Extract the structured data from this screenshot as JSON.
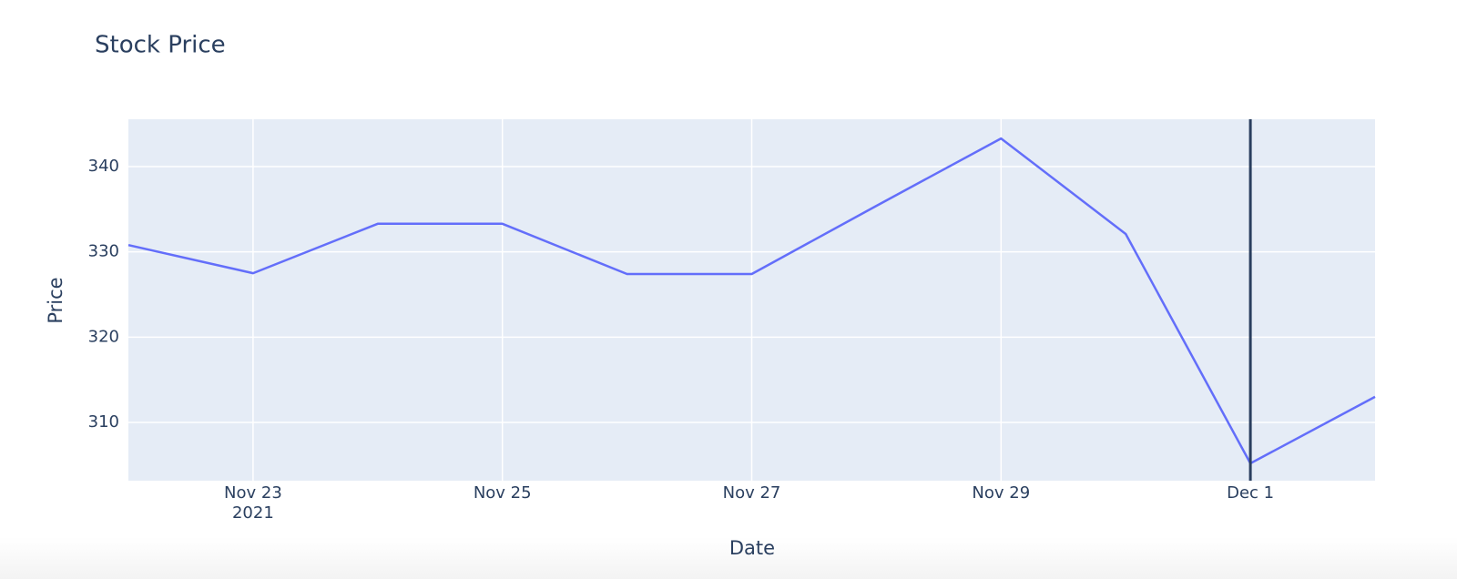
{
  "chart_data": {
    "type": "line",
    "title": "Stock Price",
    "x_label": "Date",
    "y_label": "Price",
    "x": [
      "2021-11-22",
      "2021-11-23",
      "2021-11-24",
      "2021-11-25",
      "2021-11-26",
      "2021-11-27",
      "2021-11-28",
      "2021-11-29",
      "2021-11-30",
      "2021-12-01",
      "2021-12-02"
    ],
    "series": [
      {
        "name": "Price",
        "color": "#636efa",
        "values": [
          330.8,
          327.5,
          333.3,
          333.3,
          327.4,
          327.4,
          335.4,
          343.3,
          332.1,
          305.2,
          313.0
        ]
      }
    ],
    "xlim": [
      "2021-11-22",
      "2021-12-02"
    ],
    "xticks": [
      {
        "value": "2021-11-23",
        "label": "Nov 23"
      },
      {
        "value": "2021-11-25",
        "label": "Nov 25"
      },
      {
        "value": "2021-11-27",
        "label": "Nov 27"
      },
      {
        "value": "2021-11-29",
        "label": "Nov 29"
      },
      {
        "value": "2021-12-01",
        "label": "Dec 1"
      }
    ],
    "x_year_label": "2021",
    "ylim": [
      303.17,
      345.55
    ],
    "yticks": [
      310,
      320,
      330,
      340
    ],
    "grid": true,
    "vline": {
      "x": "2021-12-01",
      "color": "#2a3f5f"
    }
  }
}
